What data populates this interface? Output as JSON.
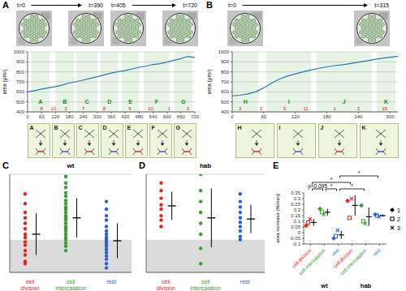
{
  "images": [
    {
      "start": "t=0",
      "end": "t=390"
    },
    {
      "start": "t=405",
      "end": "t=720"
    },
    {
      "start": "t=0",
      "end": "t=315"
    }
  ],
  "diagrams": [
    [
      "A",
      "B",
      "C",
      "D",
      "E",
      "F",
      "G"
    ],
    [
      "H",
      "I",
      "J",
      "K"
    ]
  ],
  "chart_data": [
    {
      "type": "line",
      "panel": "A",
      "y_label": "area (μm²)",
      "x": [
        0,
        30,
        60,
        90,
        120,
        150,
        180,
        210,
        240,
        270,
        300,
        330,
        360,
        390,
        420,
        450,
        480,
        510,
        540,
        570,
        600,
        630,
        660,
        690,
        720
      ],
      "values": [
        600,
        612,
        628,
        640,
        652,
        668,
        690,
        702,
        718,
        735,
        752,
        770,
        788,
        802,
        812,
        830,
        846,
        858,
        874,
        882,
        898,
        916,
        932,
        955,
        942
      ],
      "color": "#2e75b6",
      "xlim": [
        0,
        720
      ],
      "xticks": [
        0,
        60,
        120,
        180,
        240,
        300,
        360,
        420,
        480,
        540,
        600,
        660,
        720
      ],
      "ylim": [
        400,
        1000
      ],
      "yticks": [
        400,
        500,
        600,
        700,
        800,
        900,
        1000
      ],
      "grid": true,
      "segments": [
        {
          "label": "A",
          "start": 15,
          "end": 95
        },
        {
          "label": "B",
          "start": 120,
          "end": 200
        },
        {
          "label": "C",
          "start": 210,
          "end": 300
        },
        {
          "label": "D",
          "start": 315,
          "end": 390
        },
        {
          "label": "E",
          "start": 405,
          "end": 480
        },
        {
          "label": "F",
          "start": 500,
          "end": 610
        },
        {
          "label": "G",
          "start": 630,
          "end": 710
        }
      ],
      "divisions": [
        {
          "time": 60,
          "label": "8"
        },
        {
          "time": 110,
          "label": "10"
        },
        {
          "time": 165,
          "label": "2"
        },
        {
          "time": 240,
          "label": "7"
        },
        {
          "time": 330,
          "label": "8"
        },
        {
          "time": 440,
          "label": "5"
        },
        {
          "time": 530,
          "label": "10"
        },
        {
          "time": 610,
          "label": "1"
        },
        {
          "time": 690,
          "label": "3"
        }
      ]
    },
    {
      "type": "line",
      "panel": "B",
      "y_label": "area (μm²)",
      "x": [
        0,
        15,
        30,
        45,
        60,
        75,
        90,
        105,
        120,
        135,
        150,
        165,
        180,
        195,
        210,
        225,
        240,
        255,
        270,
        285,
        300,
        315
      ],
      "values": [
        560,
        566,
        580,
        602,
        640,
        688,
        728,
        758,
        780,
        800,
        818,
        836,
        850,
        862,
        872,
        884,
        898,
        910,
        924,
        936,
        946,
        956
      ],
      "color": "#2e75b6",
      "xlim": [
        0,
        315
      ],
      "xticks": [
        0,
        60,
        120,
        180,
        240,
        300
      ],
      "ylim": [
        400,
        1000
      ],
      "yticks": [
        400,
        500,
        600,
        700,
        800,
        900,
        1000
      ],
      "grid": true,
      "segments": [
        {
          "label": "H",
          "start": 0,
          "end": 50
        },
        {
          "label": "I",
          "start": 65,
          "end": 150
        },
        {
          "label": "J",
          "start": 160,
          "end": 265
        },
        {
          "label": "K",
          "start": 275,
          "end": 310
        }
      ],
      "divisions": [
        {
          "time": 15,
          "label": "3"
        },
        {
          "time": 55,
          "label": "2"
        },
        {
          "time": 100,
          "label": "5"
        },
        {
          "time": 140,
          "label": "11"
        },
        {
          "time": 195,
          "label": "1"
        },
        {
          "time": 240,
          "label": "2"
        },
        {
          "time": 290,
          "label": "15"
        }
      ]
    },
    {
      "type": "scatter",
      "panel": "C",
      "title": "wt",
      "categories": [
        "cell division",
        "cell intercalation",
        "rest"
      ],
      "colors": [
        "#e8231f",
        "#33a02c",
        "#2b5fd9"
      ],
      "values": [
        [
          0.42,
          0.33,
          0.25,
          0.2,
          0.15,
          0.1,
          0.05,
          0.02,
          -0.02,
          -0.05,
          -0.1,
          -0.14,
          -0.2,
          -0.22
        ],
        [
          0.58,
          0.52,
          0.48,
          0.43,
          0.4,
          0.36,
          0.33,
          0.3,
          0.28,
          0.25,
          0.22,
          0.2,
          0.18,
          0.15,
          0.12,
          0.1,
          0.08,
          0.05,
          0.02,
          0,
          -0.03,
          -0.06,
          -0.1
        ],
        [
          0.35,
          0.28,
          0.22,
          0.18,
          0.12,
          0.08,
          0.05,
          0.02,
          0,
          -0.02,
          -0.04,
          -0.06,
          -0.09,
          -0.12,
          -0.15,
          -0.18,
          -0.22,
          -0.26
        ]
      ],
      "mean": [
        0.05,
        0.2,
        -0.01
      ],
      "error": [
        0.19,
        0.18,
        0.16
      ],
      "ylim": [
        -0.3,
        0.6
      ],
      "yticks": [
        -0.2,
        -0.1,
        0,
        0.1,
        0.2,
        0.3,
        0.4,
        0.5,
        0.6
      ],
      "grid": true,
      "tick_labels": "x",
      "shaded_range": [
        -0.3,
        0
      ]
    },
    {
      "type": "scatter",
      "panel": "D",
      "title": "hab",
      "categories": [
        "cell division",
        "cell intercalation",
        "rest"
      ],
      "colors": [
        "#e8231f",
        "#33a02c",
        "#2b5fd9"
      ],
      "values": [
        [
          0.52,
          0.45,
          0.38,
          0.32,
          0.28,
          0.22,
          0.18,
          0.12
        ],
        [
          0.6,
          0.45,
          0.35,
          0.25,
          0.15,
          0.05,
          -0.08,
          -0.22
        ],
        [
          0.42,
          0.35,
          0.3,
          0.25,
          0.2,
          0.16,
          0.12,
          0.08,
          0.03,
          0
        ]
      ],
      "mean": [
        0.31,
        0.2,
        0.19
      ],
      "error": [
        0.13,
        0.27,
        0.13
      ],
      "ylim": [
        -0.3,
        0.6
      ],
      "yticks": [
        -0.2,
        -0.1,
        0,
        0.1,
        0.2,
        0.3,
        0.4,
        0.5,
        0.6
      ],
      "grid": true,
      "tick_labels": "x",
      "shaded_range": [
        -0.3,
        0
      ]
    },
    {
      "type": "scatter",
      "panel": "E",
      "y_label": "area increase (%/min)",
      "categories": [
        "cell division",
        "cell intercalation",
        "rest",
        "cell division",
        "cell intercalation",
        "rest"
      ],
      "groups": [
        {
          "label": "wt",
          "span": [
            0,
            2
          ]
        },
        {
          "label": "hab",
          "span": [
            3,
            5
          ]
        }
      ],
      "colors": [
        "#e8231f",
        "#33a02c",
        "#2b5fd9",
        "#e8231f",
        "#33a02c",
        "#2b5fd9"
      ],
      "series": [
        {
          "name": "1",
          "marker": "diamond",
          "values": [
            0.06,
            0.21,
            -0.05,
            0.28,
            0.24,
            0.16
          ]
        },
        {
          "name": "2",
          "marker": "square",
          "values": [
            0.09,
            0.18,
            -0.03,
            0.13,
            0.1,
            0.15
          ]
        },
        {
          "name": "3",
          "marker": "cross",
          "values": [
            0.12,
            0.16,
            0.02,
            0.3,
            0.08,
            0.14
          ]
        }
      ],
      "mean": [
        0.09,
        0.18,
        -0.02,
        0.24,
        0.14,
        0.15
      ],
      "error": [
        0.03,
        0.03,
        0.035,
        0.09,
        0.08,
        0.01
      ],
      "ylim": [
        -0.1,
        0.35
      ],
      "yticks": [
        -0.1,
        -0.05,
        0,
        0.05,
        0.1,
        0.15,
        0.2,
        0.25,
        0.3,
        0.35
      ],
      "legend": "right",
      "comparisons": [
        {
          "pair": [
            0,
            1
          ],
          "label": "p=0.095"
        },
        {
          "pair": [
            1,
            2
          ],
          "label": "*"
        },
        {
          "pair": [
            2,
            4
          ],
          "label": "*"
        },
        {
          "pair": [
            0,
            3
          ],
          "label": "*"
        },
        {
          "pair": [
            2,
            5
          ],
          "label": "*"
        }
      ]
    }
  ]
}
